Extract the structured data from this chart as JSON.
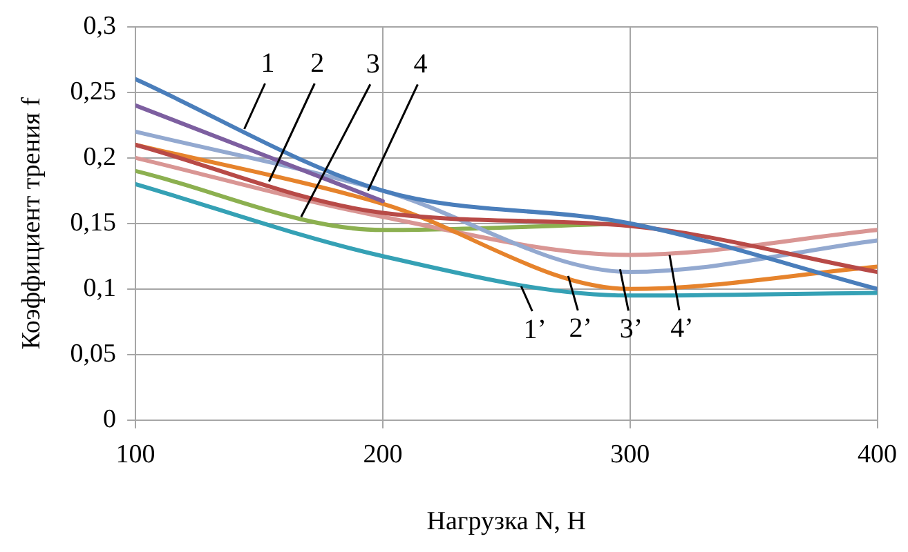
{
  "chart_data": {
    "type": "line",
    "xlabel": "Нагрузка N, Н",
    "ylabel": "Коэффициент трения f",
    "xlim": [
      100,
      400
    ],
    "xticks": [
      100,
      200,
      300,
      400
    ],
    "ylim": [
      0,
      0.3
    ],
    "yticks": [
      {
        "value": 0,
        "label": "0"
      },
      {
        "value": 0.05,
        "label": "0,05"
      },
      {
        "value": 0.1,
        "label": "0,1"
      },
      {
        "value": 0.15,
        "label": "0,15"
      },
      {
        "value": 0.2,
        "label": "0,2"
      },
      {
        "value": 0.25,
        "label": "0,25"
      },
      {
        "value": 0.3,
        "label": "0,3"
      }
    ],
    "grid": true,
    "legend": false,
    "marker": "none",
    "line_style": "solid",
    "series": [
      {
        "color": "#4a7ebb",
        "x": [
          100,
          200,
          300,
          400
        ],
        "values": [
          0.26,
          0.175,
          0.15,
          0.1
        ]
      },
      {
        "color": "#7d5fa0",
        "x": [
          100,
          200
        ],
        "values": [
          0.24,
          0.167
        ]
      },
      {
        "color": "#b84a47",
        "x": [
          100,
          200,
          300,
          400
        ],
        "values": [
          0.21,
          0.158,
          0.148,
          0.113
        ]
      },
      {
        "color": "#93a9d0",
        "x": [
          100,
          200,
          300,
          400
        ],
        "values": [
          0.22,
          0.175,
          0.113,
          0.137
        ]
      },
      {
        "color": "#e6832c",
        "x": [
          100,
          200,
          300,
          400
        ],
        "values": [
          0.21,
          0.165,
          0.1,
          0.117
        ]
      },
      {
        "color": "#d99694",
        "x": [
          100,
          200,
          300,
          400
        ],
        "values": [
          0.2,
          0.155,
          0.126,
          0.145
        ]
      },
      {
        "color": "#8cb050",
        "x": [
          100,
          200,
          300
        ],
        "values": [
          0.19,
          0.145,
          0.15
        ]
      },
      {
        "color": "#35a1b5",
        "x": [
          100,
          200,
          300,
          400
        ],
        "values": [
          0.18,
          0.125,
          0.095,
          0.097
        ]
      }
    ],
    "annotations": [
      {
        "text": "1",
        "x": 144,
        "y": 0.222
      },
      {
        "text": "2",
        "x": 154,
        "y": 0.182
      },
      {
        "text": "3",
        "x": 167,
        "y": 0.155
      },
      {
        "text": "4",
        "x": 194,
        "y": 0.175
      },
      {
        "text": "1’",
        "x": 256,
        "y": 0.102
      },
      {
        "text": "2’",
        "x": 275,
        "y": 0.11
      },
      {
        "text": "3’",
        "x": 296,
        "y": 0.115
      },
      {
        "text": "4’",
        "x": 316,
        "y": 0.126
      }
    ]
  }
}
